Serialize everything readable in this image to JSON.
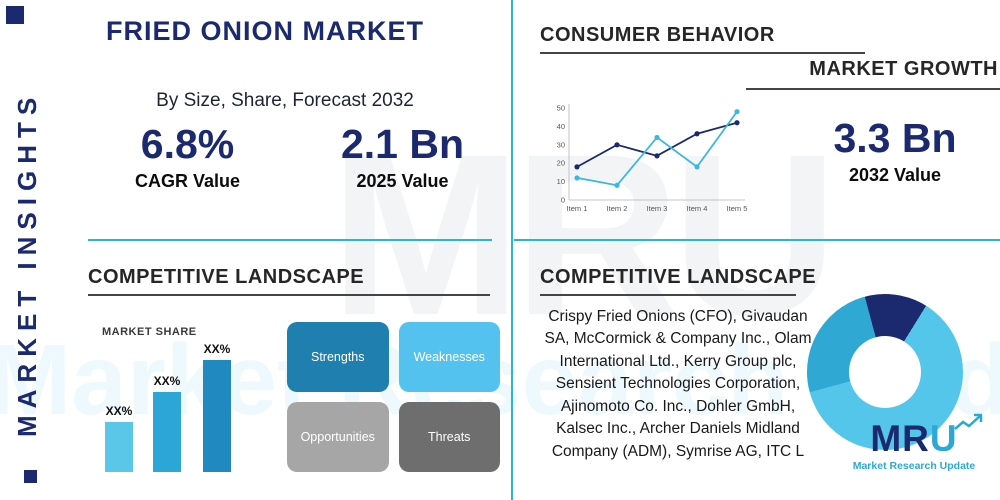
{
  "meta": {
    "brand_navy": "#1b2a6e",
    "accent_teal": "#2fb3d4"
  },
  "sidebar": {
    "vertical_title": "MARKET INSIGHTS"
  },
  "header": {
    "title": "FRIED ONION MARKET",
    "subtitle": "By Size, Share, Forecast 2032"
  },
  "stats": {
    "cagr": {
      "value": "6.8%",
      "label": "CAGR Value"
    },
    "v2025": {
      "value": "2.1 Bn",
      "label": "2025 Value"
    },
    "v2032": {
      "value": "3.3 Bn",
      "label": "2032 Value"
    }
  },
  "consumer_behavior": {
    "title": "CONSUMER BEHAVIOR",
    "subtitle": "MARKET GROWTH"
  },
  "competitive_left": {
    "title": "COMPETITIVE LANDSCAPE",
    "market_share_label": "MARKET SHARE"
  },
  "swot": {
    "items": [
      {
        "label": "Strengths",
        "color": "#1f7fae"
      },
      {
        "label": "Weaknesses",
        "color": "#54c2ee"
      },
      {
        "label": "Opportunities",
        "color": "#a6a6a6"
      },
      {
        "label": "Threats",
        "color": "#6e6e6e"
      }
    ]
  },
  "competitive_right": {
    "title": "COMPETITIVE LANDSCAPE",
    "companies": "Crispy Fried Onions (CFO), Givaudan SA, McCormick & Company Inc., Olam International Ltd., Kerry Group plc, Sensient Technologies Corporation, Ajinomoto Co. Inc., Dohler GmbH, Kalsec Inc., Archer Daniels Midland Company (ADM), Symrise AG, ITC L"
  },
  "logo": {
    "mr": "MR",
    "u": "U",
    "tagline": "Market Research Update"
  },
  "watermark": {
    "center": "MRU",
    "bottom": "Market Research Update"
  },
  "chart_data": [
    {
      "id": "market-growth-line",
      "type": "line",
      "title": "MARKET GROWTH",
      "x": [
        "Item 1",
        "Item 2",
        "Item 3",
        "Item 4",
        "Item 5"
      ],
      "ylim": [
        0,
        50
      ],
      "yticks": [
        0,
        10,
        20,
        30,
        40,
        50
      ],
      "grid": false,
      "legend": "none",
      "series": [
        {
          "name": "series-navy",
          "color": "#1b2a6e",
          "values": [
            18,
            30,
            24,
            36,
            42
          ]
        },
        {
          "name": "series-teal",
          "color": "#3bb8dc",
          "values": [
            12,
            8,
            34,
            18,
            48
          ]
        }
      ]
    },
    {
      "id": "market-share-bars",
      "type": "bar",
      "title": "MARKET SHARE",
      "categories": [
        "",
        "",
        ""
      ],
      "value_labels": [
        "XX%",
        "XX%",
        "XX%"
      ],
      "values_masked": true,
      "relative_heights": [
        50,
        80,
        112
      ],
      "colors": [
        "#5ac7e8",
        "#2ca6d6",
        "#1f89c0"
      ]
    },
    {
      "id": "company-share-donut",
      "type": "pie",
      "donut": true,
      "labels_visible": false,
      "segments": [
        {
          "name": "segment-navy",
          "value": 13,
          "color": "#1b2a6e"
        },
        {
          "name": "segment-sky",
          "value": 62,
          "color": "#53c6ea"
        },
        {
          "name": "segment-teal",
          "value": 25,
          "color": "#2fa9d4"
        }
      ]
    }
  ]
}
